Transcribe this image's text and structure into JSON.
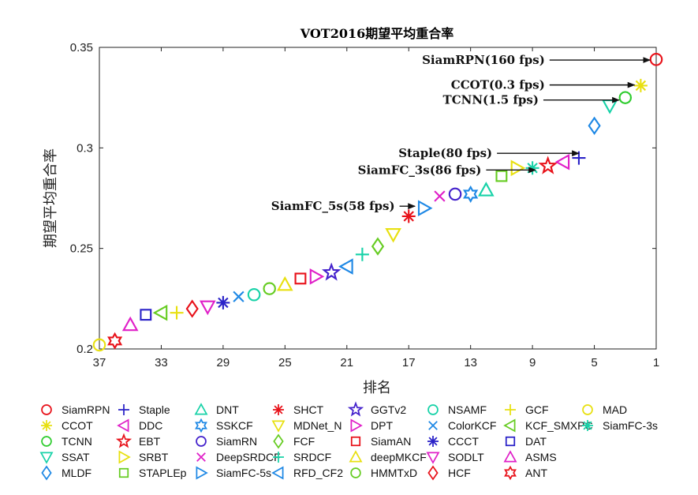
{
  "chart_data": {
    "type": "scatter",
    "title": "VOT2016期望平均重合率",
    "xlabel": "排名",
    "ylabel": "期望平均重合率",
    "xlim": [
      37,
      1
    ],
    "ylim": [
      0.2,
      0.35
    ],
    "x_ticks": [
      "37",
      "33",
      "29",
      "25",
      "21",
      "17",
      "13",
      "9",
      "5",
      "1"
    ],
    "y_ticks": [
      "0.2",
      "0.25",
      "0.3",
      "0.35"
    ],
    "grid": false,
    "legend_position": "bottom",
    "series": [
      {
        "name": "SiamRPN",
        "marker": "circle",
        "color": "#e8121a",
        "x": 1,
        "y": 0.344
      },
      {
        "name": "CCOT",
        "marker": "star",
        "color": "#e8e010",
        "x": 2,
        "y": 0.331
      },
      {
        "name": "TCNN",
        "marker": "octagon",
        "color": "#2ecc2e",
        "x": 3,
        "y": 0.325
      },
      {
        "name": "SSAT",
        "marker": "triangle-down",
        "color": "#18d2a8",
        "x": 4,
        "y": 0.321
      },
      {
        "name": "MLDF",
        "marker": "diamond",
        "color": "#1e88e5",
        "x": 5,
        "y": 0.311
      },
      {
        "name": "Staple",
        "marker": "plus",
        "color": "#2a22c8",
        "x": 6,
        "y": 0.295
      },
      {
        "name": "DDC",
        "marker": "triangle-left",
        "color": "#e020c8",
        "x": 7,
        "y": 0.293
      },
      {
        "name": "EBT",
        "marker": "star5",
        "color": "#e8121a",
        "x": 8,
        "y": 0.291
      },
      {
        "name": "SRBT",
        "marker": "triangle-right",
        "color": "#e8e010",
        "x": 10,
        "y": 0.29
      },
      {
        "name": "STAPLEp",
        "marker": "square",
        "color": "#66cc22",
        "x": 11,
        "y": 0.286
      },
      {
        "name": "DNT",
        "marker": "triangle-up",
        "color": "#18d2a8",
        "x": 12,
        "y": 0.279
      },
      {
        "name": "SSKCF",
        "marker": "hexagram",
        "color": "#1e88e5",
        "x": 13,
        "y": 0.277
      },
      {
        "name": "SiamRN",
        "marker": "circle",
        "color": "#4422cc",
        "x": 14,
        "y": 0.277
      },
      {
        "name": "DeepSRDCF",
        "marker": "x",
        "color": "#e020c8",
        "x": 15,
        "y": 0.276
      },
      {
        "name": "SiamFC-5s",
        "marker": "triangle-right",
        "color": "#1e88e5",
        "x": 16,
        "y": 0.27
      },
      {
        "name": "SHCT",
        "marker": "star",
        "color": "#e8121a",
        "x": 17,
        "y": 0.266
      },
      {
        "name": "MDNet_N",
        "marker": "triangle-down",
        "color": "#e8e010",
        "x": 18,
        "y": 0.257
      },
      {
        "name": "FCF",
        "marker": "diamond",
        "color": "#66cc22",
        "x": 19,
        "y": 0.251
      },
      {
        "name": "SRDCF",
        "marker": "plus",
        "color": "#18d2a8",
        "x": 20,
        "y": 0.247
      },
      {
        "name": "RFD_CF2",
        "marker": "triangle-left",
        "color": "#1e88e5",
        "x": 21,
        "y": 0.241
      },
      {
        "name": "GGTv2",
        "marker": "star5",
        "color": "#4422cc",
        "x": 22,
        "y": 0.238
      },
      {
        "name": "DPT",
        "marker": "triangle-right",
        "color": "#e020c8",
        "x": 23,
        "y": 0.236
      },
      {
        "name": "SiamAN",
        "marker": "square",
        "color": "#e8121a",
        "x": 24,
        "y": 0.235
      },
      {
        "name": "deepMKCF",
        "marker": "triangle-up",
        "color": "#e8e010",
        "x": 25,
        "y": 0.232
      },
      {
        "name": "HMMTxD",
        "marker": "octagon",
        "color": "#66cc22",
        "x": 26,
        "y": 0.23
      },
      {
        "name": "NSAMF",
        "marker": "circle",
        "color": "#18d2a8",
        "x": 27,
        "y": 0.227
      },
      {
        "name": "ColorKCF",
        "marker": "x",
        "color": "#1e88e5",
        "x": 28,
        "y": 0.226
      },
      {
        "name": "CCCT",
        "marker": "star",
        "color": "#2a22c8",
        "x": 29,
        "y": 0.223
      },
      {
        "name": "SODLT",
        "marker": "triangle-down",
        "color": "#e020c8",
        "x": 30,
        "y": 0.221
      },
      {
        "name": "HCF",
        "marker": "diamond",
        "color": "#e8121a",
        "x": 31,
        "y": 0.22
      },
      {
        "name": "GCF",
        "marker": "plus",
        "color": "#e8e010",
        "x": 32,
        "y": 0.218
      },
      {
        "name": "KCF_SMXPC",
        "marker": "triangle-left",
        "color": "#66cc22",
        "x": 33,
        "y": 0.218
      },
      {
        "name": "DAT",
        "marker": "square",
        "color": "#2a22c8",
        "x": 34,
        "y": 0.217
      },
      {
        "name": "ASMS",
        "marker": "triangle-up",
        "color": "#e020c8",
        "x": 35,
        "y": 0.212
      },
      {
        "name": "ANT",
        "marker": "hexagram",
        "color": "#e8121a",
        "x": 36,
        "y": 0.204
      },
      {
        "name": "MAD",
        "marker": "circle",
        "color": "#e8e010",
        "x": 37,
        "y": 0.202
      },
      {
        "name": "SiamFC-3s",
        "marker": "star",
        "color": "#18d2a8",
        "x": 9,
        "y": 0.29
      }
    ],
    "annotations": [
      {
        "text": "SiamRPN(160 fps)",
        "color": "#e8121a",
        "text_x": 8.2,
        "text_y": 0.3437,
        "arrow_to_x": 1.4,
        "arrow_to_y": 0.3437
      },
      {
        "text": "CCOT(0.3 fps)",
        "color": "#111111",
        "text_x": 8.2,
        "text_y": 0.3313,
        "arrow_to_x": 2.4,
        "arrow_to_y": 0.3313
      },
      {
        "text": "TCNN(1.5 fps)",
        "color": "#111111",
        "text_x": 8.6,
        "text_y": 0.3238,
        "arrow_to_x": 3.4,
        "arrow_to_y": 0.3238
      },
      {
        "text": "Staple(80 fps)",
        "color": "#111111",
        "text_x": 11.6,
        "text_y": 0.2973,
        "arrow_to_x": 6.0,
        "arrow_to_y": 0.2973
      },
      {
        "text": "SiamFC_3s(86 fps)",
        "color": "#111111",
        "text_x": 12.3,
        "text_y": 0.289,
        "arrow_to_x": 8.8,
        "arrow_to_y": 0.289
      },
      {
        "text": "SiamFC_5s(58 fps)",
        "color": "#111111",
        "text_x": 17.9,
        "text_y": 0.271,
        "arrow_to_x": 16.6,
        "arrow_to_y": 0.271
      }
    ]
  }
}
